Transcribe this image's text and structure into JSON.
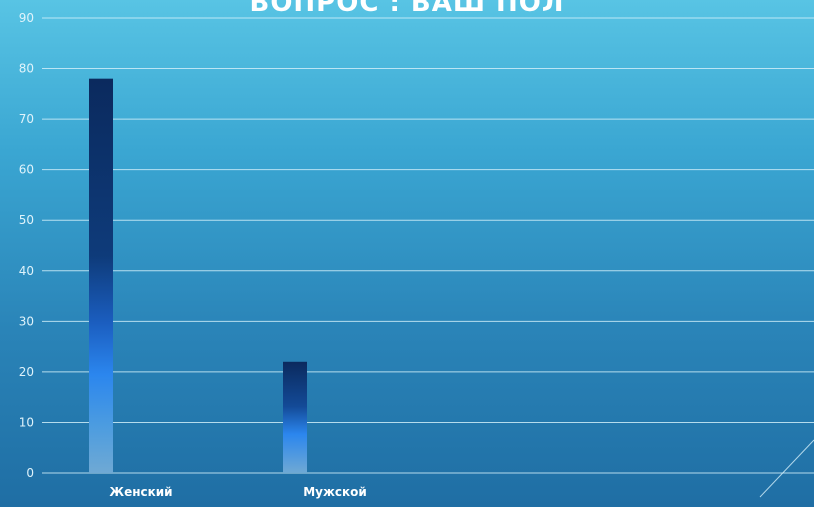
{
  "chart_data": {
    "type": "bar",
    "title": "ВОПРОС : ВАШ ПОЛ",
    "categories": [
      "Женский",
      "Мужской"
    ],
    "values": [
      78,
      22
    ],
    "ylim": [
      0,
      90
    ],
    "yticks": [
      0,
      10,
      20,
      30,
      40,
      50,
      60,
      70,
      80,
      90
    ],
    "grid": true,
    "xlabel": "",
    "ylabel": ""
  }
}
